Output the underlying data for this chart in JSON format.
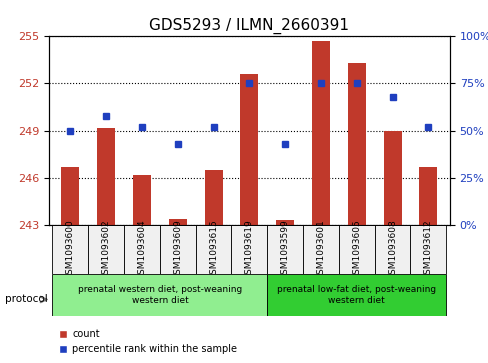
{
  "title": "GDS5293 / ILMN_2660391",
  "samples": [
    "GSM1093600",
    "GSM1093602",
    "GSM1093604",
    "GSM1093609",
    "GSM1093615",
    "GSM1093619",
    "GSM1093599",
    "GSM1093601",
    "GSM1093605",
    "GSM1093608",
    "GSM1093612"
  ],
  "bar_values": [
    246.7,
    249.2,
    246.2,
    243.4,
    246.5,
    252.6,
    243.3,
    254.7,
    253.3,
    249.0,
    246.7
  ],
  "percentile_values": [
    50,
    58,
    52,
    43,
    52,
    75,
    43,
    75,
    75,
    68,
    52
  ],
  "ylim_left": [
    243,
    255
  ],
  "ylim_right": [
    0,
    100
  ],
  "yticks_left": [
    243,
    246,
    249,
    252,
    255
  ],
  "yticks_right": [
    0,
    25,
    50,
    75,
    100
  ],
  "bar_color": "#C0392B",
  "dot_color": "#1F3FBF",
  "bg_color": "#F0F0F0",
  "group1_label": "prenatal western diet, post-weaning\nwestern diet",
  "group2_label": "prenatal low-fat diet, post-weaning\nwestern diet",
  "group1_color": "#90EE90",
  "group2_color": "#32CD32",
  "group1_indices": [
    0,
    1,
    2,
    3,
    4,
    5
  ],
  "group2_indices": [
    6,
    7,
    8,
    9,
    10
  ],
  "protocol_label": "protocol",
  "legend_count_label": "count",
  "legend_pct_label": "percentile rank within the sample"
}
